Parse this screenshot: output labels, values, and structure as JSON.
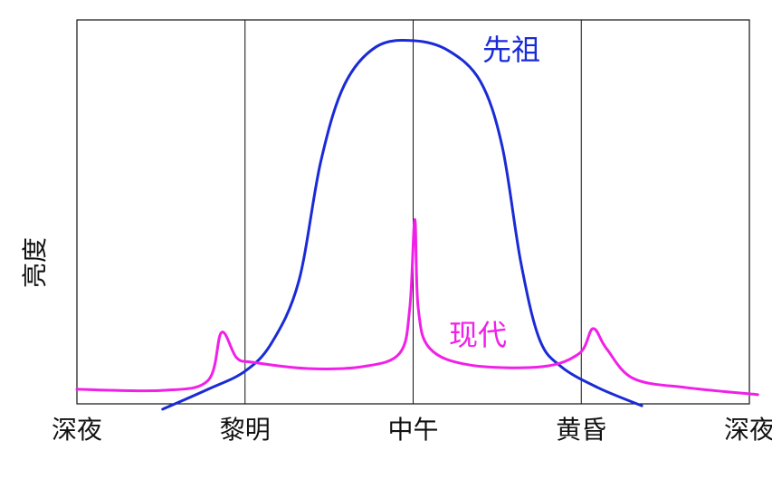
{
  "chart_data": {
    "type": "line",
    "ylabel": "亮度",
    "xlim": [
      0,
      4
    ],
    "ylim": [
      0,
      100
    ],
    "xticks": [
      {
        "value": 0,
        "label": "深夜"
      },
      {
        "value": 1,
        "label": "黎明"
      },
      {
        "value": 2,
        "label": "中午"
      },
      {
        "value": 3,
        "label": "黄昏"
      },
      {
        "value": 4,
        "label": "深夜"
      }
    ],
    "grid": true,
    "series": [
      {
        "name": "先祖",
        "color": "#1a2bd6",
        "x": [
          0.51,
          0.78,
          1.0,
          1.16,
          1.32,
          1.45,
          1.59,
          1.78,
          2.0,
          2.21,
          2.4,
          2.53,
          2.64,
          2.75,
          2.88,
          3.1,
          3.36
        ],
        "values": [
          -1.4,
          3.8,
          8.5,
          16,
          32,
          63,
          83,
          93,
          94.6,
          92,
          84,
          67,
          37,
          17,
          9.7,
          4.2,
          -0.5
        ]
      },
      {
        "name": "现代",
        "color": "#f020e8",
        "x": [
          0,
          0.51,
          0.78,
          0.86,
          0.95,
          1.05,
          1.37,
          1.7,
          1.92,
          1.98,
          2.01,
          2.03,
          2.1,
          2.34,
          2.77,
          2.99,
          3.07,
          3.15,
          3.31,
          3.63,
          4.05
        ],
        "values": [
          3.8,
          3.5,
          6.1,
          18.6,
          12,
          10.8,
          9.2,
          9.7,
          13.2,
          25,
          48,
          25,
          14.4,
          10.1,
          9.7,
          13.2,
          19.6,
          14.4,
          6.6,
          4.2,
          2.4
        ]
      }
    ]
  }
}
